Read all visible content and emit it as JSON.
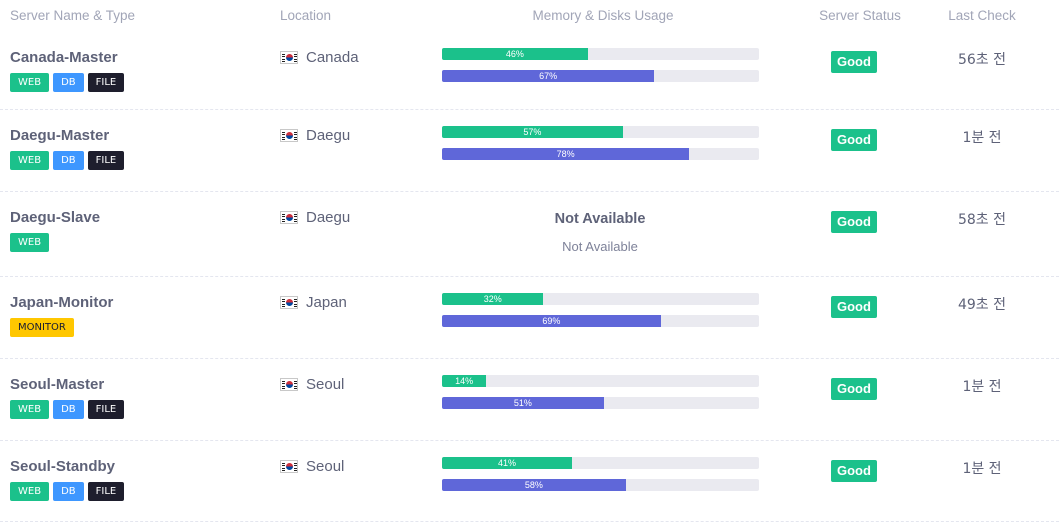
{
  "header": {
    "name_type": "Server Name & Type",
    "location": "Location",
    "usage": "Memory & Disks Usage",
    "status": "Server Status",
    "last_check": "Last Check"
  },
  "colors": {
    "good": "#1bc18b",
    "web_tag": "#1bc18b",
    "db_tag": "#3e97ff",
    "file_tag": "#1e1e2d",
    "monitor_tag": "#ffc700",
    "memory_bar": "#1bc18b",
    "disk_bar": "#5f67d9"
  },
  "servers": [
    {
      "name": "Canada-Master",
      "tags": [
        "WEB",
        "DB",
        "FILE"
      ],
      "flag_icon": "south-korea-flag-icon",
      "location": "Canada",
      "memory": {
        "value": 46,
        "label": "46%"
      },
      "disk": {
        "value": 67,
        "label": "67%"
      },
      "status": "Good",
      "last_check": "56초 전"
    },
    {
      "name": "Daegu-Master",
      "tags": [
        "WEB",
        "DB",
        "FILE"
      ],
      "flag_icon": "south-korea-flag-icon",
      "location": "Daegu",
      "memory": {
        "value": 57,
        "label": "57%"
      },
      "disk": {
        "value": 78,
        "label": "78%"
      },
      "status": "Good",
      "last_check": "1분 전"
    },
    {
      "name": "Daegu-Slave",
      "tags": [
        "WEB"
      ],
      "flag_icon": "south-korea-flag-icon",
      "location": "Daegu",
      "usage_na": "Not Available",
      "usage_na_sub": "Not Available",
      "status": "Good",
      "last_check": "58초 전"
    },
    {
      "name": "Japan-Monitor",
      "tags": [
        "MONITOR"
      ],
      "flag_icon": "south-korea-flag-icon",
      "location": "Japan",
      "memory": {
        "value": 32,
        "label": "32%"
      },
      "disk": {
        "value": 69,
        "label": "69%"
      },
      "status": "Good",
      "last_check": "49초 전"
    },
    {
      "name": "Seoul-Master",
      "tags": [
        "WEB",
        "DB",
        "FILE"
      ],
      "flag_icon": "south-korea-flag-icon",
      "location": "Seoul",
      "memory": {
        "value": 14,
        "label": "14%"
      },
      "disk": {
        "value": 51,
        "label": "51%"
      },
      "status": "Good",
      "last_check": "1분 전"
    },
    {
      "name": "Seoul-Standby",
      "tags": [
        "WEB",
        "DB",
        "FILE"
      ],
      "flag_icon": "south-korea-flag-icon",
      "location": "Seoul",
      "memory": {
        "value": 41,
        "label": "41%"
      },
      "disk": {
        "value": 58,
        "label": "58%"
      },
      "status": "Good",
      "last_check": "1분 전"
    }
  ]
}
